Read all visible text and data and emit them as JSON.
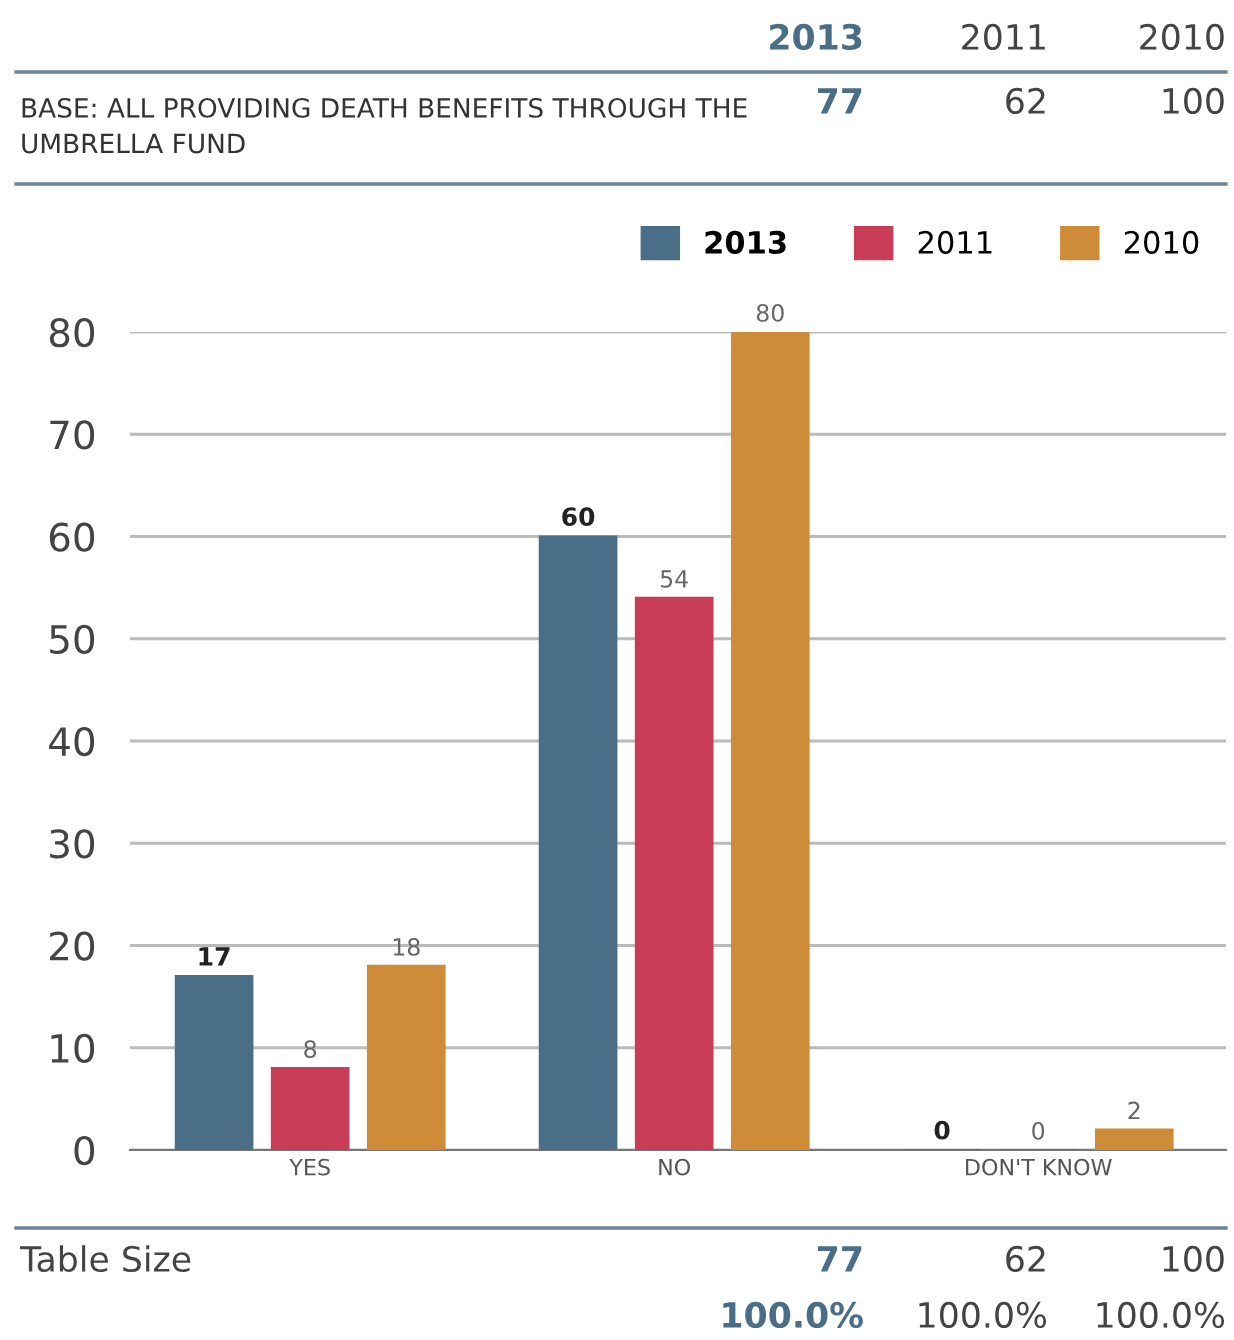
{
  "chart_data": {
    "type": "bar",
    "categories": [
      "YES",
      "NO",
      "DON'T KNOW"
    ],
    "series": [
      {
        "name": "2013",
        "color": "#4a6e88",
        "values": [
          17,
          60,
          0
        ]
      },
      {
        "name": "2011",
        "color": "#c93c55",
        "values": [
          8,
          54,
          0
        ]
      },
      {
        "name": "2010",
        "color": "#cf8c38",
        "values": [
          18,
          80,
          2
        ]
      }
    ],
    "ylim": [
      0,
      80
    ],
    "yticks": [
      0,
      10,
      20,
      30,
      40,
      50,
      60,
      70,
      80
    ],
    "grid": "y",
    "legend": "top right",
    "data_labels": true,
    "annotations": [
      "2013",
      "2011",
      "2010",
      "BASE: ALL PROVIDING DEATH BENEFITS THROUGH THE UMBRELLA FUND",
      "77",
      "62",
      "100",
      "Table Size",
      "77",
      "62",
      "100",
      "100.0%",
      "100.0%",
      "100.0%"
    ]
  }
}
